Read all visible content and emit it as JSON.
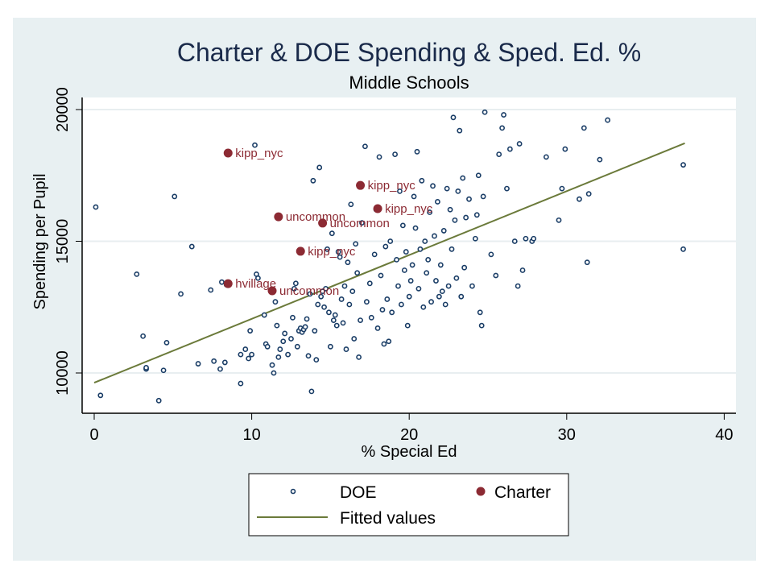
{
  "chart_data": {
    "type": "scatter",
    "title": "Charter & DOE Spending & Sped. Ed. %",
    "subtitle": "Middle Schools",
    "xlabel": "% Special Ed",
    "ylabel": "Spending per Pupil",
    "xlim": [
      0,
      40
    ],
    "ylim": [
      10000,
      20000
    ],
    "x_ticks": [
      0,
      10,
      20,
      30,
      40
    ],
    "x_tick_labels": [
      "0",
      "10",
      "20",
      "30",
      "40"
    ],
    "y_ticks": [
      10000,
      15000,
      20000
    ],
    "y_tick_labels": [
      "10000",
      "15000",
      "20000"
    ],
    "grid": true,
    "legend_position": "bottom",
    "colors": {
      "doe": "#1a3d66",
      "charter": "#8c2a33",
      "fitted": "#6b7a3a",
      "panel_bg": "#e8f0f2",
      "plot_bg": "#ffffff",
      "grid": "#e8eef0"
    },
    "legend": [
      {
        "label": "DOE",
        "marker": "hollow-circle"
      },
      {
        "label": "Charter",
        "marker": "filled-circle"
      },
      {
        "label": "Fitted values",
        "marker": "line"
      }
    ],
    "series": [
      {
        "name": "DOE",
        "points": [
          [
            0.1,
            16300
          ],
          [
            0.4,
            9150
          ],
          [
            2.7,
            13750
          ],
          [
            3.1,
            11400
          ],
          [
            3.3,
            10150
          ],
          [
            3.3,
            10200
          ],
          [
            4.4,
            10100
          ],
          [
            4.1,
            8950
          ],
          [
            4.6,
            11150
          ],
          [
            5.1,
            16700
          ],
          [
            5.5,
            13000
          ],
          [
            6.2,
            14800
          ],
          [
            6.6,
            10350
          ],
          [
            7.4,
            13150
          ],
          [
            7.6,
            10450
          ],
          [
            8.0,
            10150
          ],
          [
            8.3,
            10400
          ],
          [
            8.1,
            13450
          ],
          [
            8.4,
            13350
          ],
          [
            9.3,
            10700
          ],
          [
            9.3,
            9600
          ],
          [
            9.6,
            10900
          ],
          [
            9.8,
            10550
          ],
          [
            9.9,
            11600
          ],
          [
            10.0,
            10700
          ],
          [
            10.2,
            18650
          ],
          [
            10.3,
            13750
          ],
          [
            10.4,
            13600
          ],
          [
            10.8,
            12200
          ],
          [
            10.9,
            11100
          ],
          [
            11.0,
            11000
          ],
          [
            11.3,
            10300
          ],
          [
            11.4,
            10000
          ],
          [
            11.5,
            12700
          ],
          [
            11.6,
            11800
          ],
          [
            11.7,
            10600
          ],
          [
            11.8,
            10900
          ],
          [
            12.0,
            11200
          ],
          [
            12.1,
            11500
          ],
          [
            12.3,
            10700
          ],
          [
            12.5,
            11300
          ],
          [
            12.6,
            12100
          ],
          [
            12.7,
            13200
          ],
          [
            12.8,
            13400
          ],
          [
            12.9,
            11000
          ],
          [
            13.0,
            11600
          ],
          [
            13.1,
            11700
          ],
          [
            13.2,
            11550
          ],
          [
            13.3,
            11650
          ],
          [
            13.4,
            11750
          ],
          [
            13.5,
            12050
          ],
          [
            13.6,
            10650
          ],
          [
            13.7,
            13000
          ],
          [
            13.8,
            9300
          ],
          [
            13.9,
            17300
          ],
          [
            14.0,
            11600
          ],
          [
            14.1,
            10500
          ],
          [
            14.2,
            12600
          ],
          [
            14.3,
            17800
          ],
          [
            14.4,
            12900
          ],
          [
            14.5,
            13100
          ],
          [
            14.6,
            12500
          ],
          [
            14.7,
            13200
          ],
          [
            14.8,
            14700
          ],
          [
            14.9,
            12300
          ],
          [
            15.0,
            11000
          ],
          [
            15.1,
            15300
          ],
          [
            15.2,
            12000
          ],
          [
            15.3,
            12200
          ],
          [
            15.4,
            11800
          ],
          [
            15.5,
            14600
          ],
          [
            15.6,
            14400
          ],
          [
            15.7,
            12800
          ],
          [
            15.8,
            11900
          ],
          [
            15.9,
            13300
          ],
          [
            16.0,
            10900
          ],
          [
            16.1,
            14200
          ],
          [
            16.2,
            12600
          ],
          [
            16.3,
            16400
          ],
          [
            16.4,
            13100
          ],
          [
            16.5,
            11300
          ],
          [
            16.6,
            14900
          ],
          [
            16.7,
            13800
          ],
          [
            16.8,
            10600
          ],
          [
            16.9,
            12000
          ],
          [
            17.0,
            15700
          ],
          [
            17.2,
            18600
          ],
          [
            17.3,
            12700
          ],
          [
            17.5,
            13400
          ],
          [
            17.6,
            12100
          ],
          [
            17.8,
            14500
          ],
          [
            17.9,
            16200
          ],
          [
            18.0,
            11700
          ],
          [
            18.1,
            18200
          ],
          [
            18.2,
            13700
          ],
          [
            18.3,
            12400
          ],
          [
            18.4,
            11100
          ],
          [
            18.5,
            14800
          ],
          [
            18.6,
            12800
          ],
          [
            18.7,
            11200
          ],
          [
            18.8,
            15000
          ],
          [
            18.9,
            12300
          ],
          [
            19.1,
            18300
          ],
          [
            19.2,
            14300
          ],
          [
            19.3,
            13300
          ],
          [
            19.4,
            16900
          ],
          [
            19.5,
            12600
          ],
          [
            19.6,
            15600
          ],
          [
            19.7,
            13900
          ],
          [
            19.8,
            14600
          ],
          [
            19.9,
            11800
          ],
          [
            20.0,
            12900
          ],
          [
            20.1,
            13500
          ],
          [
            20.2,
            14100
          ],
          [
            20.3,
            16700
          ],
          [
            20.4,
            15500
          ],
          [
            20.5,
            18400
          ],
          [
            20.6,
            13200
          ],
          [
            20.7,
            14700
          ],
          [
            20.8,
            17300
          ],
          [
            20.9,
            12500
          ],
          [
            21.0,
            15000
          ],
          [
            21.1,
            13800
          ],
          [
            21.2,
            14300
          ],
          [
            21.3,
            16100
          ],
          [
            21.4,
            12700
          ],
          [
            21.5,
            17100
          ],
          [
            21.6,
            15200
          ],
          [
            21.7,
            13500
          ],
          [
            21.8,
            16500
          ],
          [
            21.9,
            12900
          ],
          [
            22.0,
            14100
          ],
          [
            22.1,
            13100
          ],
          [
            22.2,
            15400
          ],
          [
            22.3,
            12600
          ],
          [
            22.4,
            17000
          ],
          [
            22.5,
            13300
          ],
          [
            22.6,
            16200
          ],
          [
            22.7,
            14700
          ],
          [
            22.8,
            19700
          ],
          [
            22.9,
            15800
          ],
          [
            23.0,
            13600
          ],
          [
            23.1,
            16900
          ],
          [
            23.2,
            19200
          ],
          [
            23.3,
            12900
          ],
          [
            23.4,
            17400
          ],
          [
            23.5,
            14000
          ],
          [
            23.6,
            15900
          ],
          [
            23.8,
            16600
          ],
          [
            24.0,
            13300
          ],
          [
            24.2,
            15100
          ],
          [
            24.3,
            16000
          ],
          [
            24.4,
            17500
          ],
          [
            24.5,
            12300
          ],
          [
            24.6,
            11800
          ],
          [
            24.7,
            16700
          ],
          [
            24.8,
            19900
          ],
          [
            25.2,
            14500
          ],
          [
            25.5,
            13700
          ],
          [
            25.7,
            18300
          ],
          [
            25.9,
            19300
          ],
          [
            26.0,
            19800
          ],
          [
            26.2,
            17000
          ],
          [
            26.4,
            18500
          ],
          [
            26.7,
            15000
          ],
          [
            26.9,
            13300
          ],
          [
            27.0,
            18700
          ],
          [
            27.2,
            13900
          ],
          [
            27.4,
            15100
          ],
          [
            27.8,
            15000
          ],
          [
            27.9,
            15100
          ],
          [
            28.7,
            18200
          ],
          [
            29.5,
            15800
          ],
          [
            29.7,
            17000
          ],
          [
            29.9,
            18500
          ],
          [
            30.8,
            16600
          ],
          [
            31.1,
            19300
          ],
          [
            31.3,
            14200
          ],
          [
            31.4,
            16800
          ],
          [
            32.1,
            18100
          ],
          [
            32.6,
            19600
          ],
          [
            37.4,
            17900
          ],
          [
            37.4,
            14700
          ]
        ]
      },
      {
        "name": "Charter",
        "points": [
          {
            "x": 8.5,
            "y": 18350,
            "label": "kipp_nyc"
          },
          {
            "x": 16.9,
            "y": 17120,
            "label": "kipp_nyc"
          },
          {
            "x": 18.0,
            "y": 16240,
            "label": "kipp_nyc"
          },
          {
            "x": 11.7,
            "y": 15930,
            "label": "uncommon"
          },
          {
            "x": 14.5,
            "y": 15690,
            "label": "uncommon"
          },
          {
            "x": 13.1,
            "y": 14620,
            "label": "kipp_nyc"
          },
          {
            "x": 8.5,
            "y": 13390,
            "label": "hvillage"
          },
          {
            "x": 11.3,
            "y": 13120,
            "label": "uncommon"
          }
        ]
      },
      {
        "name": "Fitted values",
        "line": [
          [
            0,
            9630
          ],
          [
            37.5,
            18720
          ]
        ]
      }
    ]
  }
}
